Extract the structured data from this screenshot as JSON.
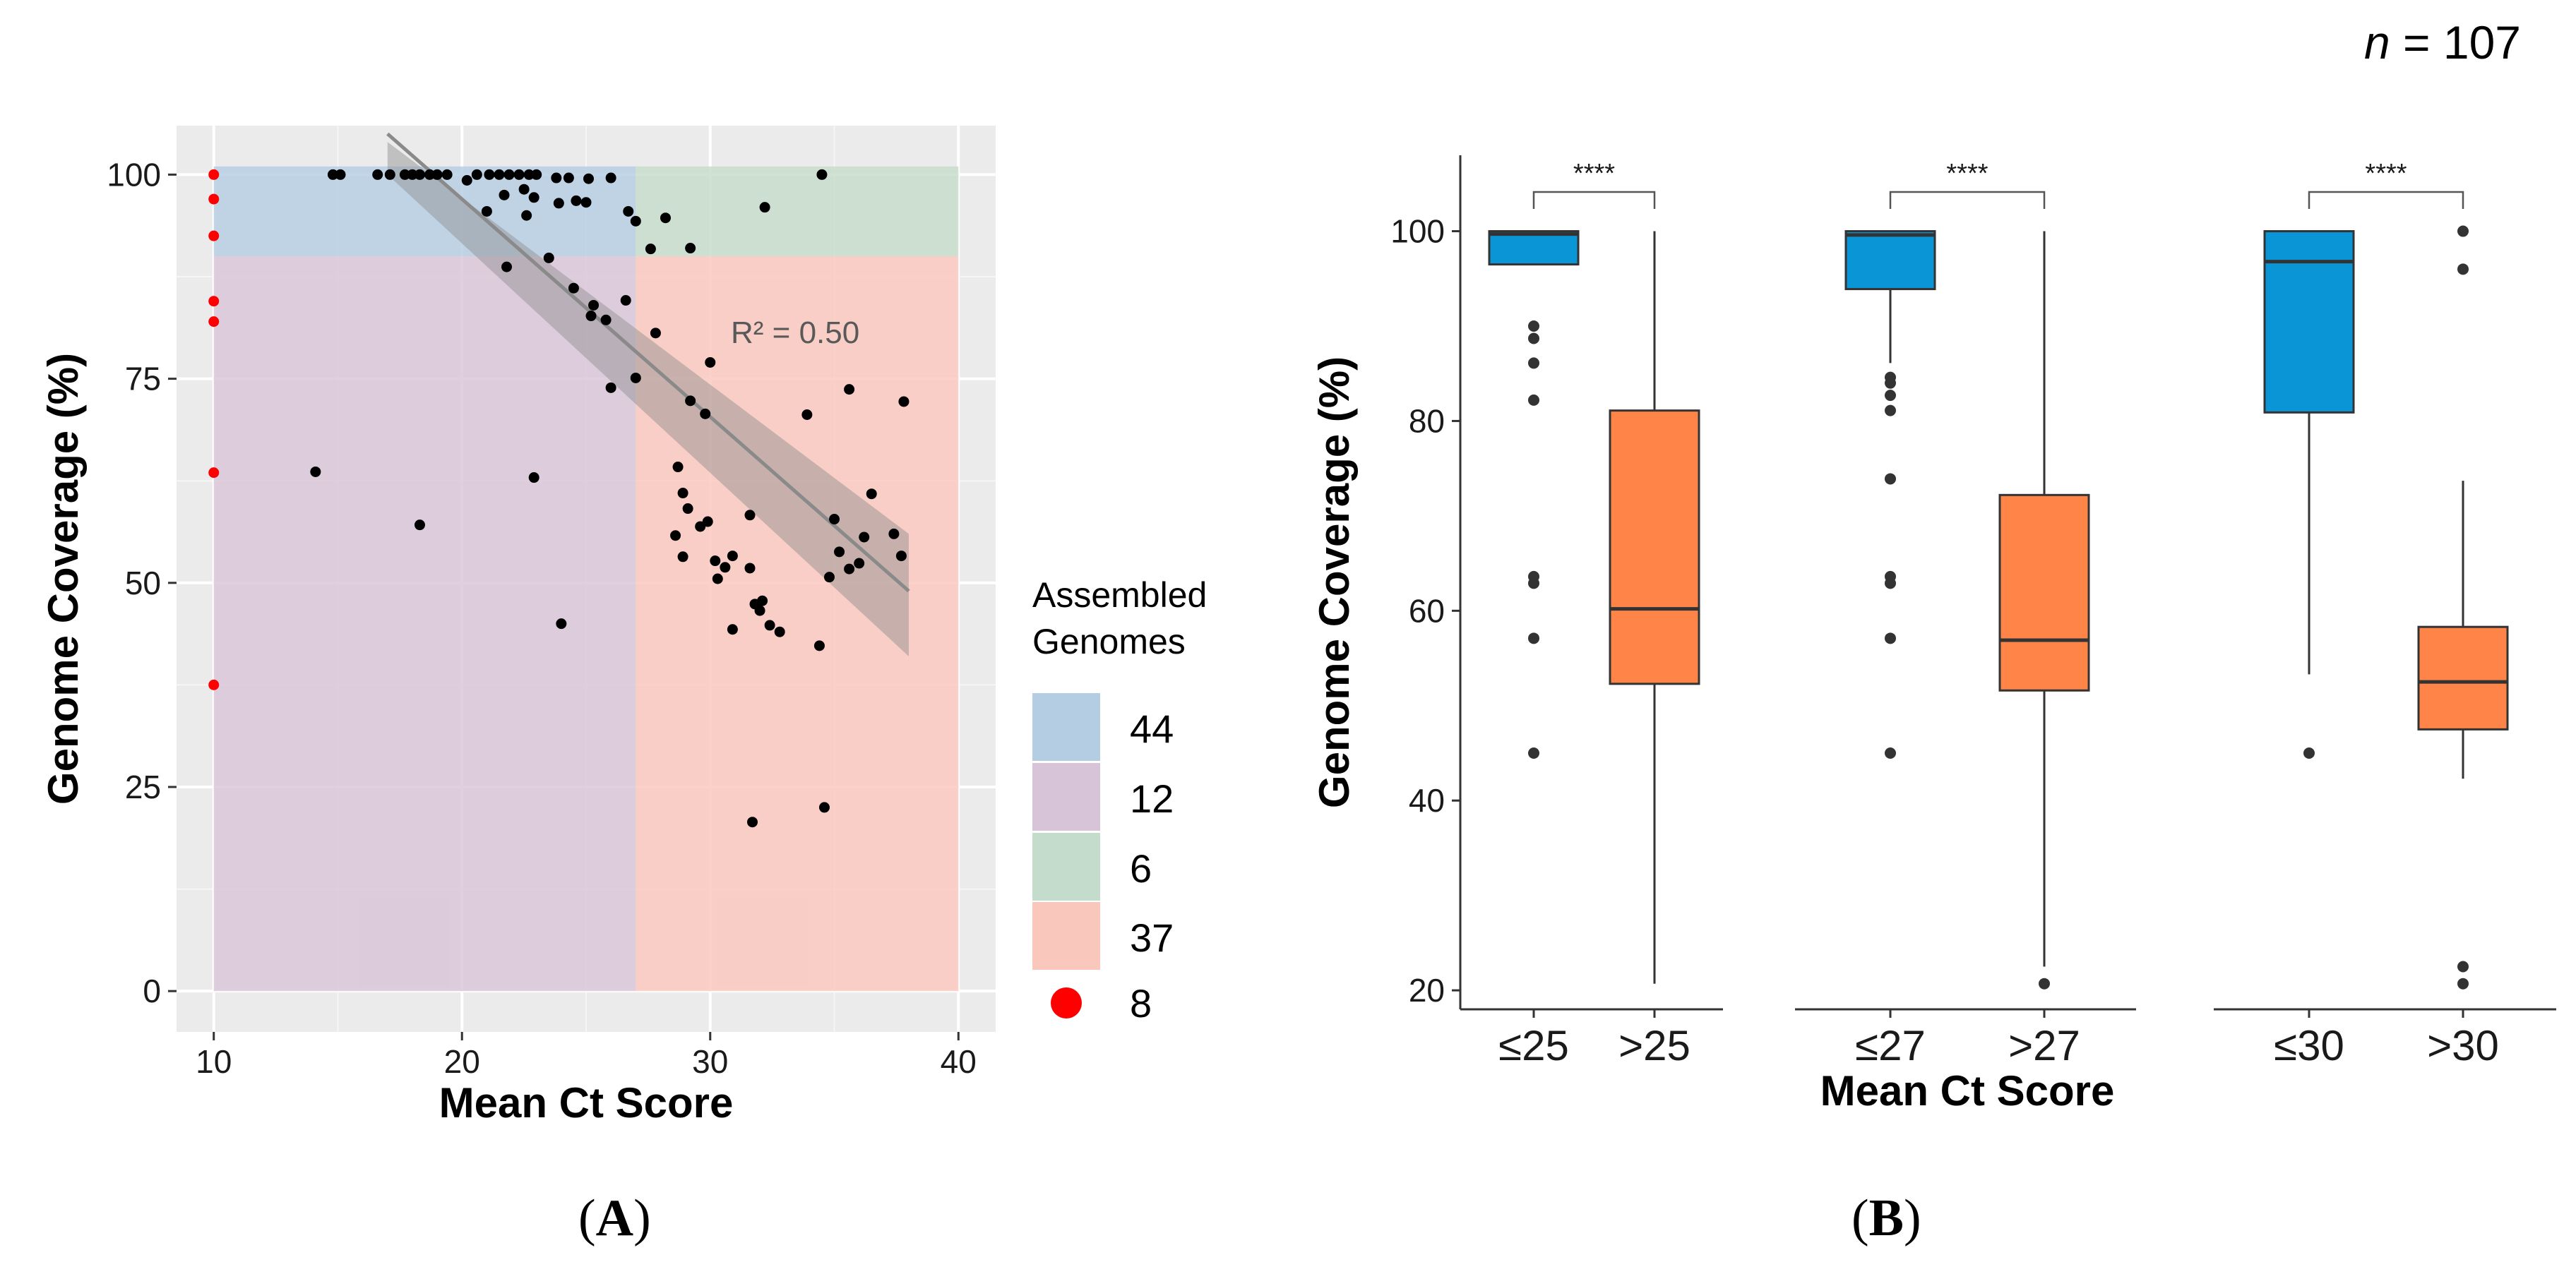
{
  "n_label": {
    "prefix": "n",
    "rest": " = 107"
  },
  "panel_labels": {
    "a": "A",
    "b": "B"
  },
  "chart_data": [
    {
      "type": "scatter",
      "panel": "A",
      "xlabel": "Mean Ct Score",
      "ylabel": "Genome Coverage (%)",
      "xlim": [
        8.5,
        41.5
      ],
      "ylim": [
        -5,
        106
      ],
      "xticks": [
        10,
        20,
        30,
        40
      ],
      "yticks": [
        0,
        25,
        50,
        75,
        100
      ],
      "background": "#ebebeb",
      "grid": true,
      "annotation": "R² = 0.50",
      "regions": [
        {
          "label": "44",
          "color": "#b4cde3",
          "x": [
            10,
            27
          ],
          "y": [
            90,
            101
          ]
        },
        {
          "label": "12",
          "color": "#d8c4d8",
          "x": [
            10,
            27
          ],
          "y": [
            0,
            90
          ]
        },
        {
          "label": "6",
          "color": "#c4dccb",
          "x": [
            27,
            40
          ],
          "y": [
            90,
            101
          ]
        },
        {
          "label": "37",
          "color": "#fac7bd",
          "x": [
            27,
            40
          ],
          "y": [
            0,
            90
          ]
        }
      ],
      "legend": {
        "title_lines": [
          "Assembled",
          "Genomes"
        ],
        "entries": [
          {
            "label": "44",
            "color": "#b4cde3",
            "kind": "box"
          },
          {
            "label": "12",
            "color": "#d8c4d8",
            "kind": "box"
          },
          {
            "label": "6",
            "color": "#c4dccb",
            "kind": "box"
          },
          {
            "label": "37",
            "color": "#fac7bd",
            "kind": "box"
          },
          {
            "label": "8",
            "color": "#ff0000",
            "kind": "dot"
          }
        ]
      },
      "regression": {
        "x": [
          17,
          38
        ],
        "y": [
          105,
          49
        ],
        "band_upper": [
          104,
          56
        ],
        "band_lower": [
          100,
          41
        ]
      },
      "red_points": [
        [
          10,
          100
        ],
        [
          10,
          97
        ],
        [
          10,
          92.5
        ],
        [
          10,
          84.5
        ],
        [
          10,
          82
        ],
        [
          10,
          63.5
        ],
        [
          10,
          37.5
        ]
      ],
      "points": [
        [
          14.8,
          100
        ],
        [
          15.1,
          100
        ],
        [
          16.6,
          100
        ],
        [
          17.1,
          100
        ],
        [
          17.7,
          100
        ],
        [
          18.0,
          100
        ],
        [
          18.3,
          100
        ],
        [
          18.7,
          100
        ],
        [
          19.0,
          100
        ],
        [
          19.4,
          100
        ],
        [
          20.2,
          99.3
        ],
        [
          20.6,
          100
        ],
        [
          21.1,
          100
        ],
        [
          21.5,
          100
        ],
        [
          21.9,
          100
        ],
        [
          22.3,
          100
        ],
        [
          22.7,
          100
        ],
        [
          23.0,
          100
        ],
        [
          23.8,
          99.6
        ],
        [
          24.3,
          99.6
        ],
        [
          25.1,
          99.5
        ],
        [
          26.0,
          99.6
        ],
        [
          21.7,
          97.5
        ],
        [
          22.5,
          98.2
        ],
        [
          22.9,
          97.2
        ],
        [
          23.9,
          96.5
        ],
        [
          24.6,
          96.8
        ],
        [
          25.0,
          96.6
        ],
        [
          21.0,
          95.5
        ],
        [
          22.6,
          95.0
        ],
        [
          26.7,
          95.5
        ],
        [
          27.0,
          94.3
        ],
        [
          28.2,
          94.7
        ],
        [
          29.2,
          91.0
        ],
        [
          27.6,
          90.9
        ],
        [
          32.2,
          96.0
        ],
        [
          34.5,
          100
        ],
        [
          21.8,
          88.7
        ],
        [
          23.5,
          89.8
        ],
        [
          24.5,
          86.1
        ],
        [
          25.3,
          84.0
        ],
        [
          25.8,
          82.2
        ],
        [
          26.6,
          84.6
        ],
        [
          25.2,
          82.7
        ],
        [
          27.8,
          80.6
        ],
        [
          30.0,
          77.0
        ],
        [
          26.0,
          73.9
        ],
        [
          27.0,
          75.1
        ],
        [
          29.2,
          72.3
        ],
        [
          29.8,
          70.7
        ],
        [
          33.9,
          70.6
        ],
        [
          35.6,
          73.7
        ],
        [
          37.8,
          72.2
        ],
        [
          14.1,
          63.6
        ],
        [
          22.9,
          62.9
        ],
        [
          18.3,
          57.1
        ],
        [
          28.7,
          64.2
        ],
        [
          28.9,
          61.0
        ],
        [
          29.1,
          59.1
        ],
        [
          29.9,
          57.5
        ],
        [
          29.6,
          56.9
        ],
        [
          28.6,
          55.8
        ],
        [
          28.9,
          53.2
        ],
        [
          30.2,
          52.7
        ],
        [
          30.9,
          53.3
        ],
        [
          30.6,
          51.9
        ],
        [
          30.3,
          50.5
        ],
        [
          31.6,
          51.8
        ],
        [
          31.6,
          58.3
        ],
        [
          30.9,
          44.3
        ],
        [
          31.8,
          47.4
        ],
        [
          32.1,
          47.8
        ],
        [
          32.0,
          46.6
        ],
        [
          32.4,
          44.8
        ],
        [
          32.8,
          44.0
        ],
        [
          34.8,
          50.7
        ],
        [
          35.2,
          53.8
        ],
        [
          36.0,
          52.4
        ],
        [
          35.6,
          51.7
        ],
        [
          36.2,
          55.6
        ],
        [
          37.4,
          56.0
        ],
        [
          37.7,
          53.3
        ],
        [
          35.0,
          57.8
        ],
        [
          36.5,
          60.9
        ],
        [
          24.0,
          45.0
        ],
        [
          34.4,
          42.3
        ],
        [
          31.7,
          20.7
        ],
        [
          34.6,
          22.5
        ]
      ]
    },
    {
      "type": "boxplot",
      "panel": "B",
      "xlabel": "Mean Ct Score",
      "ylabel": "Genome Coverage (%)",
      "ylim": [
        18,
        108
      ],
      "yticks": [
        20,
        40,
        60,
        80,
        100
      ],
      "colors": {
        "low": "#0a96d6",
        "high": "#ff8447"
      },
      "groups": [
        {
          "significance": "****",
          "boxes": [
            {
              "label": "≤25",
              "kind": "low",
              "q1": 96.5,
              "median": 99.7,
              "q3": 100,
              "whisker_low": 96.5,
              "whisker_high": 100,
              "outliers": [
                90.0,
                88.7,
                86.1,
                82.2,
                63.6,
                62.9,
                57.1,
                45.0
              ]
            },
            {
              "label": ">25",
              "kind": "high",
              "q1": 52.3,
              "median": 60.2,
              "q3": 81.1,
              "whisker_low": 20.7,
              "whisker_high": 100,
              "outliers": []
            }
          ]
        },
        {
          "significance": "****",
          "boxes": [
            {
              "label": "≤27",
              "kind": "low",
              "q1": 93.9,
              "median": 99.6,
              "q3": 100,
              "whisker_low": 86.1,
              "whisker_high": 100,
              "outliers": [
                84.6,
                84.0,
                82.7,
                81.1,
                73.9,
                63.6,
                62.9,
                57.1,
                45.0
              ]
            },
            {
              "label": ">27",
              "kind": "high",
              "q1": 51.6,
              "median": 56.9,
              "q3": 72.2,
              "whisker_low": 22.5,
              "whisker_high": 100,
              "outliers": [
                20.7
              ]
            }
          ]
        },
        {
          "significance": "****",
          "boxes": [
            {
              "label": "≤30",
              "kind": "low",
              "q1": 80.9,
              "median": 96.8,
              "q3": 100,
              "whisker_low": 53.3,
              "whisker_high": 100,
              "outliers": [
                45.0
              ]
            },
            {
              "label": ">30",
              "kind": "high",
              "q1": 47.5,
              "median": 52.5,
              "q3": 58.3,
              "whisker_low": 42.3,
              "whisker_high": 73.7,
              "outliers": [
                100,
                96.0,
                22.5,
                20.7
              ]
            }
          ]
        }
      ]
    }
  ]
}
